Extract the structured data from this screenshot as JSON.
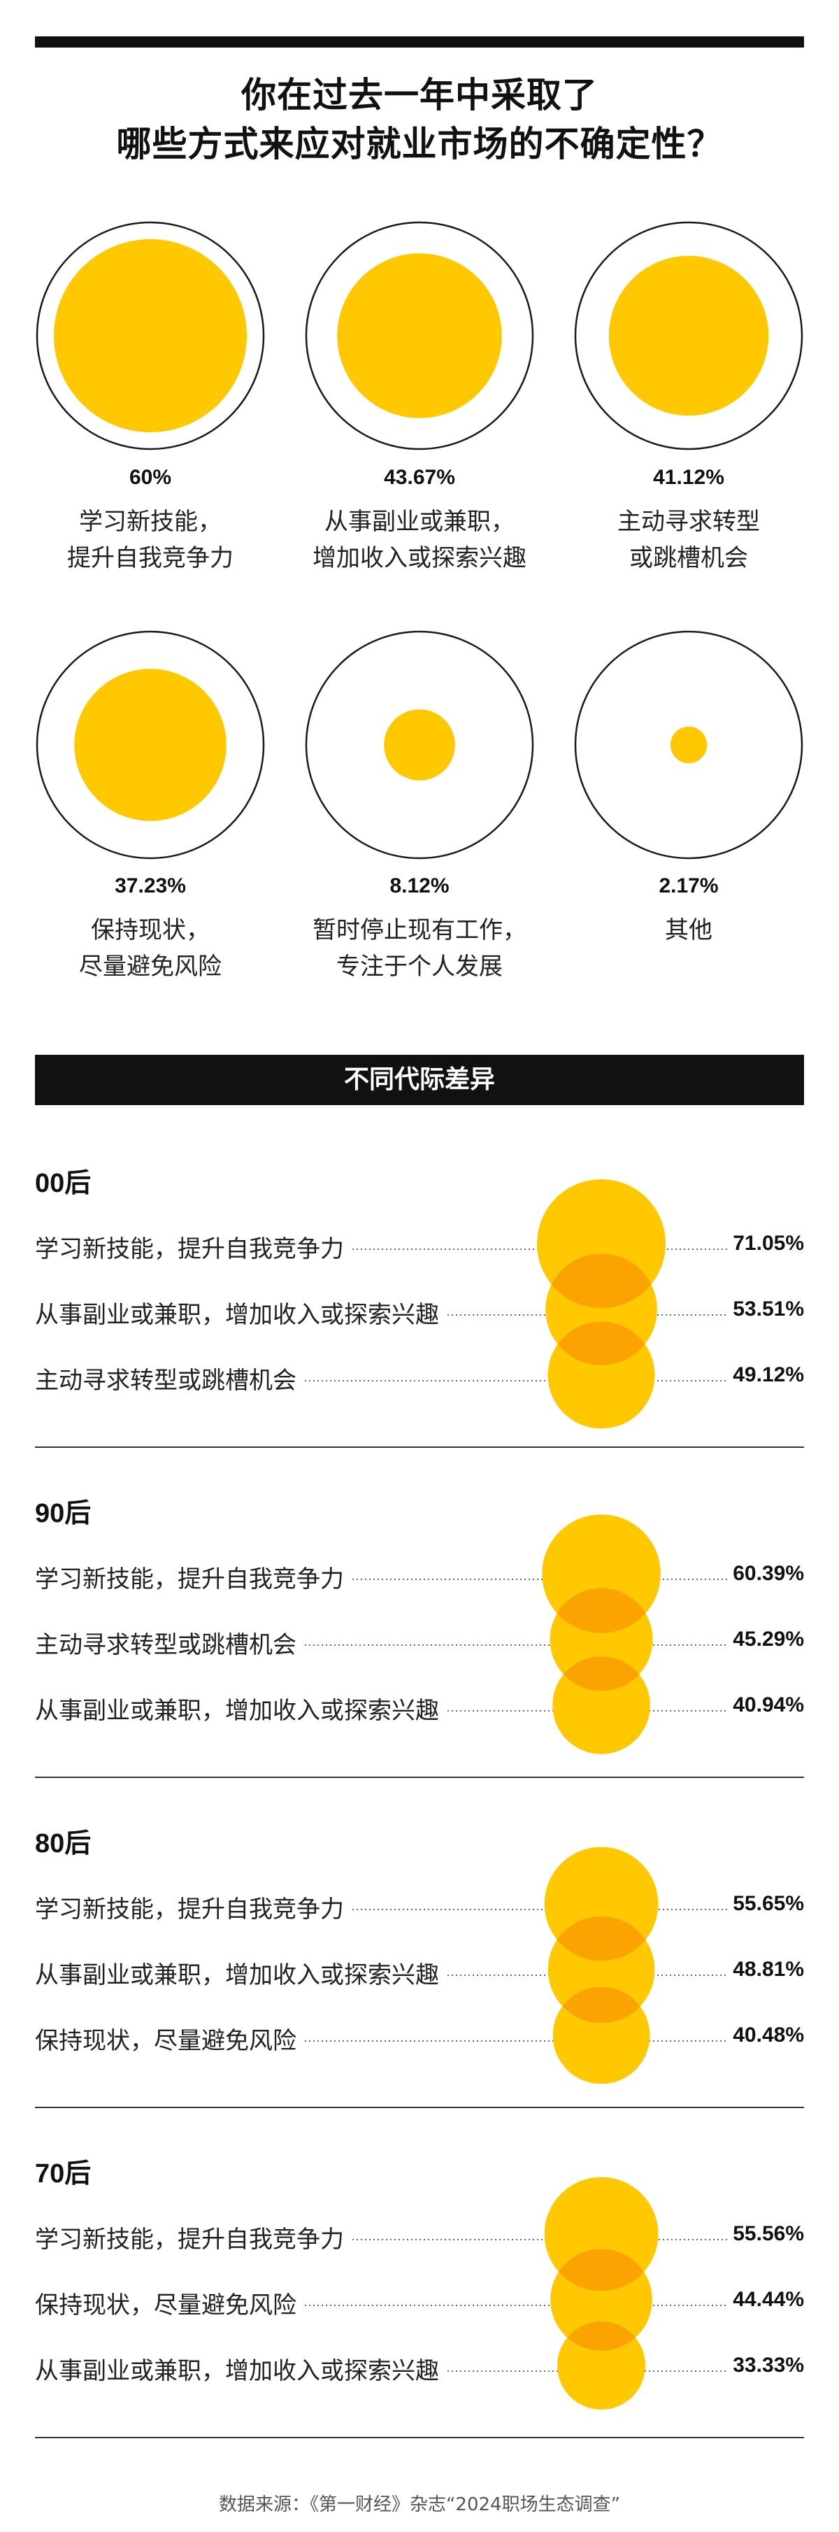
{
  "title_lines": [
    "你在过去一年中采取了",
    "哪些方式来应对就业市场的不确定性？"
  ],
  "colors": {
    "circle_fill": "#FFC800",
    "overlap_fill": "#FBA300",
    "ring": "#1a1a1a",
    "text": "#111111"
  },
  "chart_data": [
    {
      "type": "bubble",
      "max_value": 100,
      "items": [
        {
          "value": 60,
          "value_label": "60%",
          "label_lines": [
            "学习新技能，",
            "提升自我竞争力"
          ]
        },
        {
          "value": 43.67,
          "value_label": "43.67%",
          "label_lines": [
            "从事副业或兼职，",
            "增加收入或探索兴趣"
          ]
        },
        {
          "value": 41.12,
          "value_label": "41.12%",
          "label_lines": [
            "主动寻求转型",
            "或跳槽机会"
          ]
        },
        {
          "value": 37.23,
          "value_label": "37.23%",
          "label_lines": [
            "保持现状，",
            "尽量避免风险"
          ]
        },
        {
          "value": 8.12,
          "value_label": "8.12%",
          "label_lines": [
            "暂时停止现有工作，",
            "专注于个人发展"
          ]
        },
        {
          "value": 2.17,
          "value_label": "2.17%",
          "label_lines": [
            "其他"
          ]
        }
      ]
    },
    {
      "type": "bubble",
      "title": "不同代际差异",
      "groups": [
        {
          "name": "00后",
          "rows": [
            {
              "label": "学习新技能，提升自我竞争力",
              "value": 71.05,
              "value_label": "71.05%"
            },
            {
              "label": "从事副业或兼职，增加收入或探索兴趣",
              "value": 53.51,
              "value_label": "53.51%"
            },
            {
              "label": "主动寻求转型或跳槽机会",
              "value": 49.12,
              "value_label": "49.12%"
            }
          ]
        },
        {
          "name": "90后",
          "rows": [
            {
              "label": "学习新技能，提升自我竞争力",
              "value": 60.39,
              "value_label": "60.39%"
            },
            {
              "label": "主动寻求转型或跳槽机会",
              "value": 45.29,
              "value_label": "45.29%"
            },
            {
              "label": "从事副业或兼职，增加收入或探索兴趣",
              "value": 40.94,
              "value_label": "40.94%"
            }
          ]
        },
        {
          "name": "80后",
          "rows": [
            {
              "label": "学习新技能，提升自我竞争力",
              "value": 55.65,
              "value_label": "55.65%"
            },
            {
              "label": "从事副业或兼职，增加收入或探索兴趣",
              "value": 48.81,
              "value_label": "48.81%"
            },
            {
              "label": "保持现状，尽量避免风险",
              "value": 40.48,
              "value_label": "40.48%"
            }
          ]
        },
        {
          "name": "70后",
          "rows": [
            {
              "label": "学习新技能，提升自我竞争力",
              "value": 55.56,
              "value_label": "55.56%"
            },
            {
              "label": "保持现状，尽量避免风险",
              "value": 44.44,
              "value_label": "44.44%"
            },
            {
              "label": "从事副业或兼职，增加收入或探索兴趣",
              "value": 33.33,
              "value_label": "33.33%"
            }
          ]
        }
      ]
    }
  ],
  "source": "数据来源：《第一财经》杂志“2024职场生态调查”"
}
